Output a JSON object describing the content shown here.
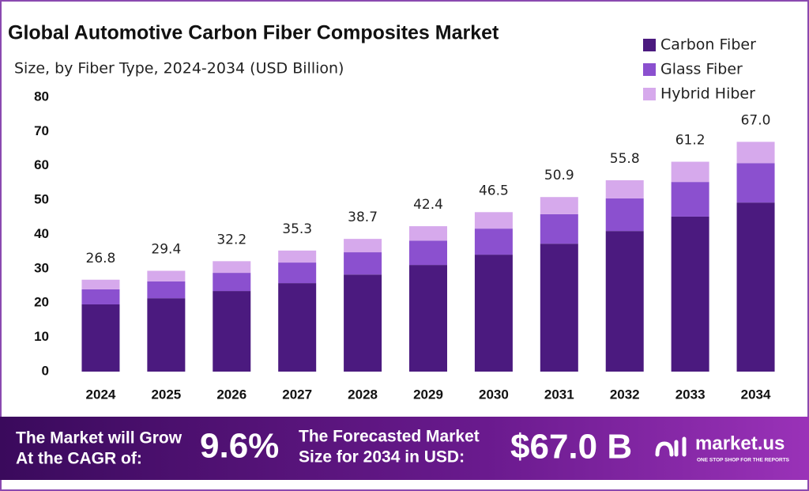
{
  "chart_data": {
    "type": "stacked_bar",
    "title": "Global Automotive Carbon Fiber Composites Market",
    "subtitle": "Size, by Fiber Type, 2024-2034 (USD Billion)",
    "categories": [
      "2024",
      "2025",
      "2026",
      "2027",
      "2028",
      "2029",
      "2030",
      "2031",
      "2032",
      "2033",
      "2034"
    ],
    "series": [
      {
        "name": "Carbon Fiber",
        "color": "#4b1a7f",
        "values": [
          19.6,
          21.4,
          23.5,
          25.8,
          28.3,
          31.1,
          34.1,
          37.3,
          41.0,
          45.2,
          49.3
        ]
      },
      {
        "name": "Glass Fiber",
        "color": "#8b50cf",
        "values": [
          4.4,
          4.9,
          5.3,
          6.0,
          6.5,
          7.1,
          7.6,
          8.6,
          9.5,
          10.1,
          11.5
        ]
      },
      {
        "name": "Hybrid Hiber",
        "color": "#d6a9ec",
        "values": [
          2.8,
          3.1,
          3.4,
          3.5,
          3.9,
          4.2,
          4.8,
          5.0,
          5.3,
          5.9,
          6.2
        ]
      }
    ],
    "totals": [
      26.8,
      29.4,
      32.2,
      35.3,
      38.7,
      42.4,
      46.5,
      50.9,
      55.8,
      61.2,
      67
    ],
    "total_labels": [
      "26.8",
      "29.4",
      "32.2",
      "35.3",
      "38.7",
      "42.4",
      "46.5",
      "50.9",
      "55.8",
      "61.2",
      "67.0"
    ],
    "ylim": [
      0,
      80
    ],
    "yticks": [
      0,
      10,
      20,
      30,
      40,
      50,
      60,
      70,
      80
    ],
    "grid": false,
    "legend": "top-right"
  },
  "footer": {
    "cagr_text": [
      "The Market will Grow",
      "At the CAGR of:"
    ],
    "cagr_value": "9.6%",
    "forecast_text": [
      "The Forecasted Market",
      "Size for 2034 in USD:"
    ],
    "forecast_value": "$67.0 B",
    "brand": "market.us",
    "tagline": "ONE STOP SHOP FOR THE REPORTS"
  }
}
